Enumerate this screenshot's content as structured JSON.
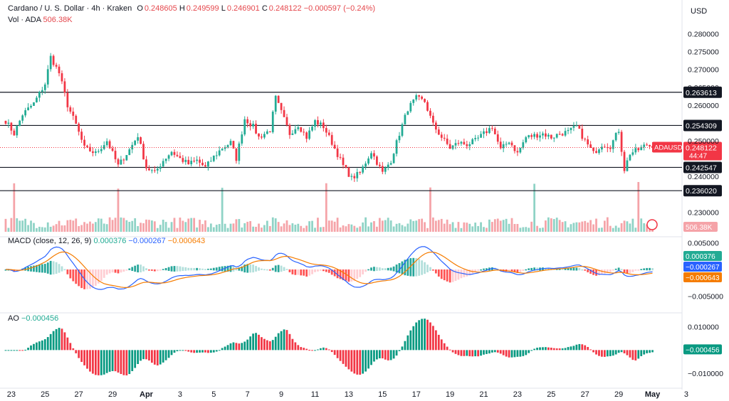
{
  "header": {
    "symbol_line": "Cardano / U. S. Dollar · 4h · Kraken",
    "open_label": "O",
    "open": "0.248605",
    "high_label": "H",
    "high": "0.249599",
    "low_label": "L",
    "low": "0.246901",
    "close_label": "C",
    "close": "0.248122",
    "change": "−0.000597 (−0.24%)",
    "vol_label": "Vol · ADA",
    "vol": "506.38K"
  },
  "currency": "USD",
  "price_axis": {
    "ticks": [
      "0.280000",
      "0.275000",
      "0.270000",
      "0.265000",
      "0.260000",
      "0.250000",
      "0.240000",
      "0.230000"
    ],
    "tick_values": [
      0.28,
      0.275,
      0.27,
      0.265,
      0.26,
      0.25,
      0.24,
      0.23
    ],
    "range": [
      0.2245,
      0.2835
    ]
  },
  "levels": [
    "0.263613",
    "0.254309",
    "0.242547",
    "0.236020"
  ],
  "level_values": [
    0.263613,
    0.254309,
    0.242547,
    0.23602
  ],
  "last_price": {
    "symbol": "ADAUSD",
    "price": "0.248122",
    "countdown": "44:47",
    "volume": "506.38K"
  },
  "macd": {
    "title": "MACD (close, 12, 26, 9)",
    "hist": "0.000376",
    "macd": "−0.000267",
    "signal": "−0.000643",
    "ticks": [
      "0.005000",
      "−0.005000"
    ],
    "tick_values": [
      0.005,
      -0.005
    ],
    "range": [
      -0.0068,
      0.0052
    ]
  },
  "ao": {
    "title": "AO",
    "value": "−0.000456",
    "ticks": [
      "0.010000",
      "−0.010000"
    ],
    "tick_values": [
      0.01,
      -0.01
    ],
    "range": [
      -0.0145,
      0.0135
    ]
  },
  "x_axis": [
    {
      "label": "23",
      "bar": 2
    },
    {
      "label": "25",
      "bar": 14
    },
    {
      "label": "27",
      "bar": 26
    },
    {
      "label": "29",
      "bar": 38
    },
    {
      "label": "Apr",
      "bar": 50
    },
    {
      "label": "3",
      "bar": 62
    },
    {
      "label": "5",
      "bar": 74
    },
    {
      "label": "7",
      "bar": 86
    },
    {
      "label": "9",
      "bar": 98
    },
    {
      "label": "11",
      "bar": 110
    },
    {
      "label": "13",
      "bar": 122
    },
    {
      "label": "15",
      "bar": 134
    },
    {
      "label": "17",
      "bar": 146
    },
    {
      "label": "19",
      "bar": 158
    },
    {
      "label": "21",
      "bar": 170
    },
    {
      "label": "23",
      "bar": 182
    },
    {
      "label": "25",
      "bar": 194
    },
    {
      "label": "27",
      "bar": 206
    },
    {
      "label": "29",
      "bar": 218
    },
    {
      "label": "May",
      "bar": 230
    },
    {
      "label": "3",
      "bar": 242
    }
  ],
  "colors": {
    "up": "#22ab94",
    "down": "#f23645",
    "up_vol": "#8fd3c6",
    "down_vol": "#f5a3a8",
    "macd": "#2962ff",
    "signal": "#f57c00"
  },
  "chart_data": {
    "type": "candlestick",
    "timeframe": "4h",
    "close_anchors": [
      [
        0,
        0.2556
      ],
      [
        3,
        0.252
      ],
      [
        6,
        0.2574
      ],
      [
        10,
        0.2605
      ],
      [
        14,
        0.266
      ],
      [
        16,
        0.2735
      ],
      [
        19,
        0.269
      ],
      [
        22,
        0.26
      ],
      [
        25,
        0.2545
      ],
      [
        28,
        0.248
      ],
      [
        32,
        0.2465
      ],
      [
        36,
        0.25
      ],
      [
        40,
        0.243
      ],
      [
        44,
        0.2475
      ],
      [
        47,
        0.2515
      ],
      [
        50,
        0.2425
      ],
      [
        53,
        0.241
      ],
      [
        56,
        0.2445
      ],
      [
        59,
        0.247
      ],
      [
        62,
        0.245
      ],
      [
        65,
        0.2435
      ],
      [
        68,
        0.2445
      ],
      [
        71,
        0.2425
      ],
      [
        74,
        0.2455
      ],
      [
        77,
        0.248
      ],
      [
        80,
        0.2495
      ],
      [
        82,
        0.245
      ],
      [
        85,
        0.2562
      ],
      [
        88,
        0.254
      ],
      [
        90,
        0.251
      ],
      [
        94,
        0.253
      ],
      [
        96,
        0.262
      ],
      [
        98,
        0.258
      ],
      [
        101,
        0.252
      ],
      [
        104,
        0.2545
      ],
      [
        107,
        0.251
      ],
      [
        110,
        0.2555
      ],
      [
        113,
        0.254
      ],
      [
        116,
        0.2495
      ],
      [
        120,
        0.243
      ],
      [
        123,
        0.2395
      ],
      [
        126,
        0.241
      ],
      [
        130,
        0.247
      ],
      [
        134,
        0.241
      ],
      [
        137,
        0.2445
      ],
      [
        140,
        0.252
      ],
      [
        143,
        0.259
      ],
      [
        146,
        0.262
      ],
      [
        149,
        0.261
      ],
      [
        152,
        0.2545
      ],
      [
        155,
        0.251
      ],
      [
        158,
        0.248
      ],
      [
        161,
        0.2495
      ],
      [
        164,
        0.249
      ],
      [
        167,
        0.25
      ],
      [
        170,
        0.252
      ],
      [
        173,
        0.254
      ],
      [
        176,
        0.2475
      ],
      [
        179,
        0.25
      ],
      [
        182,
        0.2465
      ],
      [
        185,
        0.251
      ],
      [
        188,
        0.2515
      ],
      [
        191,
        0.252
      ],
      [
        194,
        0.251
      ],
      [
        197,
        0.252
      ],
      [
        200,
        0.2525
      ],
      [
        203,
        0.254
      ],
      [
        206,
        0.25
      ],
      [
        209,
        0.2465
      ],
      [
        212,
        0.249
      ],
      [
        215,
        0.2485
      ],
      [
        218,
        0.253
      ],
      [
        220,
        0.242
      ],
      [
        222,
        0.2465
      ],
      [
        225,
        0.2475
      ],
      [
        228,
        0.249
      ],
      [
        230,
        0.24812
      ]
    ],
    "last_candle": {
      "open": 0.248605,
      "high": 0.249599,
      "low": 0.246901,
      "close": 0.248122
    },
    "horizontal_levels": [
      0.263613,
      0.254309,
      0.242547,
      0.23602
    ],
    "volume_last": 506380,
    "indicators": {
      "macd": {
        "params": [
          12,
          26,
          9
        ],
        "hist": 0.000376,
        "macd": -0.000267,
        "signal": -0.000643
      },
      "ao": {
        "value": -0.000456
      }
    }
  }
}
